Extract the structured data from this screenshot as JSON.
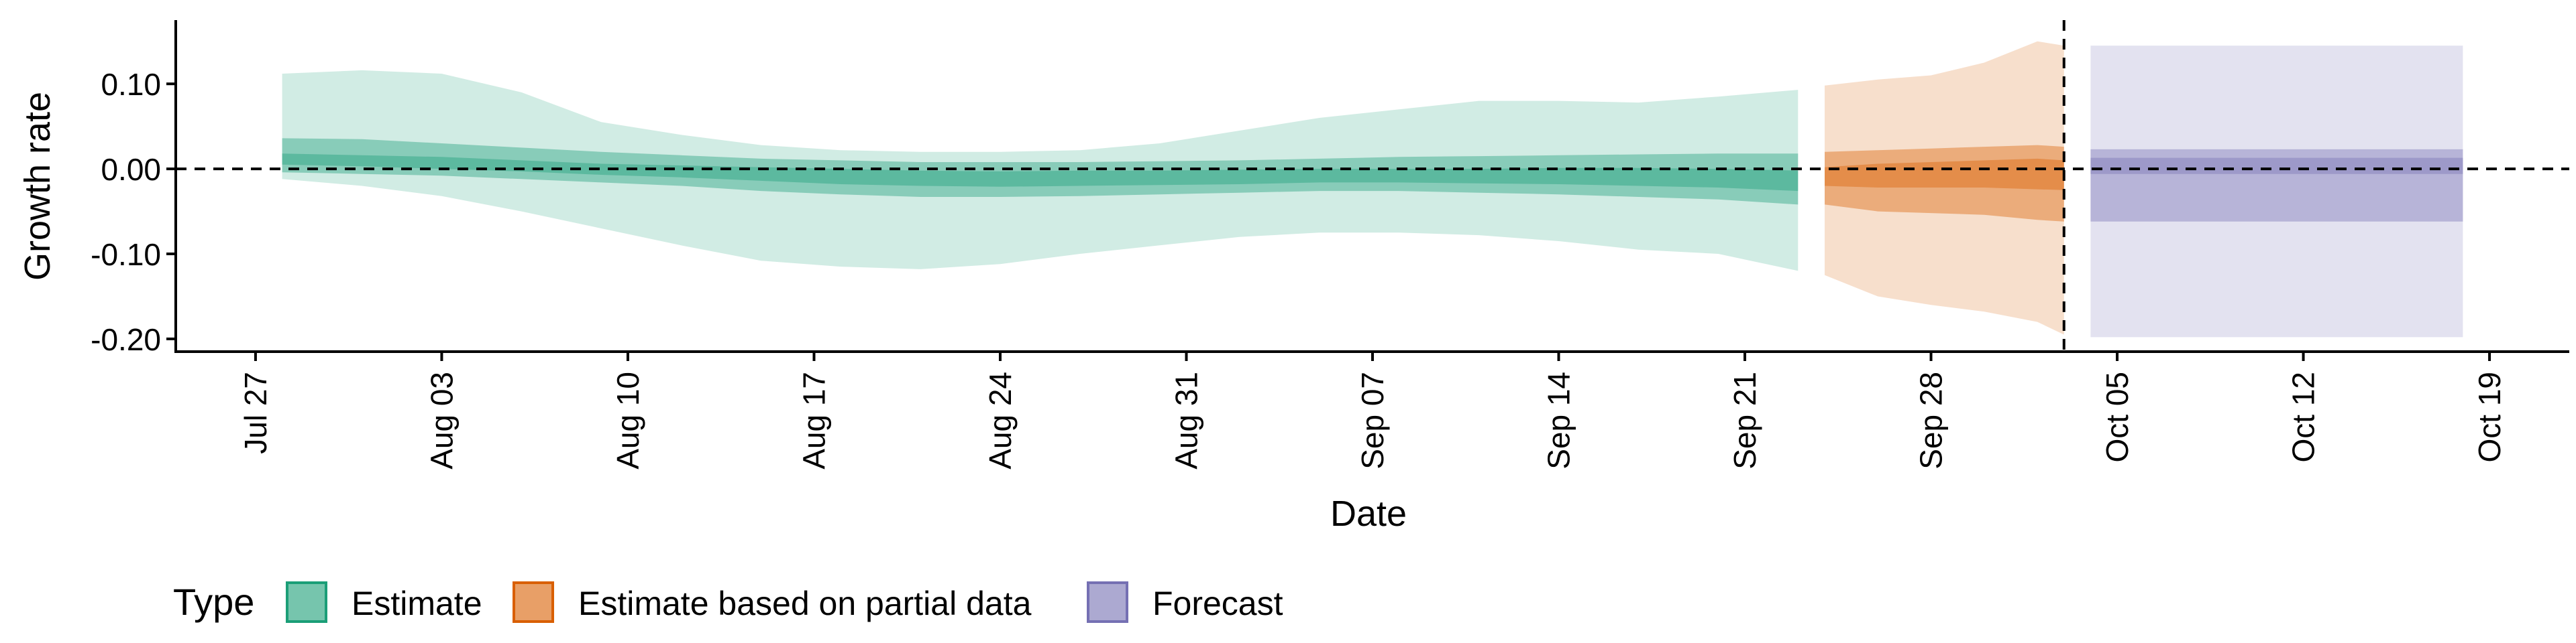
{
  "chart_data": {
    "type": "area",
    "xlabel": "Date",
    "ylabel": "Growth rate",
    "xlim": [
      "2020-07-24",
      "2020-10-22"
    ],
    "ylim": [
      -0.215,
      0.175
    ],
    "y_ticks": [
      0.1,
      0.0,
      -0.1,
      -0.2
    ],
    "y_tick_labels": [
      "0.10",
      "0.00",
      "-0.10",
      "-0.20"
    ],
    "x_ticks": [
      "2020-07-27",
      "2020-08-03",
      "2020-08-10",
      "2020-08-17",
      "2020-08-24",
      "2020-08-31",
      "2020-09-07",
      "2020-09-14",
      "2020-09-21",
      "2020-09-28",
      "2020-10-05",
      "2020-10-12",
      "2020-10-19"
    ],
    "x_tick_labels": [
      "Jul 27",
      "Aug 03",
      "Aug 10",
      "Aug 17",
      "Aug 24",
      "Aug 31",
      "Sep 07",
      "Sep 14",
      "Sep 21",
      "Sep 28",
      "Oct 05",
      "Oct 12",
      "Oct 19"
    ],
    "reference_lines": {
      "horizontal_y": 0,
      "vertical_x": "2020-10-03"
    },
    "grid": false,
    "legend": {
      "title": "Type",
      "position": "bottom-left"
    },
    "colors": {
      "Estimate": "#1b9e77",
      "Estimate based on partial data": "#d95f02",
      "Forecast": "#7570b3"
    },
    "series": [
      {
        "name": "Estimate",
        "x": [
          "2020-07-28",
          "2020-07-31",
          "2020-08-03",
          "2020-08-06",
          "2020-08-09",
          "2020-08-12",
          "2020-08-15",
          "2020-08-18",
          "2020-08-21",
          "2020-08-24",
          "2020-08-27",
          "2020-08-30",
          "2020-09-02",
          "2020-09-05",
          "2020-09-08",
          "2020-09-11",
          "2020-09-14",
          "2020-09-17",
          "2020-09-20",
          "2020-09-23"
        ],
        "upper90": [
          0.112,
          0.116,
          0.112,
          0.09,
          0.055,
          0.04,
          0.028,
          0.022,
          0.02,
          0.02,
          0.022,
          0.03,
          0.045,
          0.06,
          0.07,
          0.08,
          0.08,
          0.078,
          0.085,
          0.093
        ],
        "lower90": [
          -0.012,
          -0.02,
          -0.032,
          -0.05,
          -0.07,
          -0.09,
          -0.108,
          -0.115,
          -0.118,
          -0.112,
          -0.1,
          -0.09,
          -0.08,
          -0.075,
          -0.075,
          -0.078,
          -0.085,
          -0.095,
          -0.1,
          -0.12
        ],
        "upper50": [
          0.036,
          0.035,
          0.03,
          0.025,
          0.02,
          0.016,
          0.012,
          0.01,
          0.008,
          0.008,
          0.008,
          0.009,
          0.01,
          0.012,
          0.014,
          0.015,
          0.016,
          0.017,
          0.018,
          0.018
        ],
        "lower50": [
          -0.004,
          -0.006,
          -0.008,
          -0.012,
          -0.016,
          -0.02,
          -0.026,
          -0.03,
          -0.033,
          -0.033,
          -0.032,
          -0.03,
          -0.028,
          -0.026,
          -0.026,
          -0.028,
          -0.03,
          -0.033,
          -0.036,
          -0.042
        ],
        "upper20": [
          0.018,
          0.016,
          0.014,
          0.01,
          0.006,
          0.004,
          0.002,
          0.0,
          -0.002,
          -0.003,
          -0.002,
          -0.002,
          -0.001,
          0.0,
          0.0,
          0.0,
          0.001,
          0.001,
          0.0,
          -0.002
        ],
        "lower20": [
          0.005,
          0.003,
          0.0,
          -0.003,
          -0.007,
          -0.01,
          -0.014,
          -0.018,
          -0.02,
          -0.021,
          -0.02,
          -0.019,
          -0.018,
          -0.016,
          -0.016,
          -0.017,
          -0.018,
          -0.02,
          -0.022,
          -0.026
        ]
      },
      {
        "name": "Estimate based on partial data",
        "x": [
          "2020-09-24",
          "2020-09-26",
          "2020-09-28",
          "2020-09-30",
          "2020-10-02",
          "2020-10-03"
        ],
        "upper90": [
          0.098,
          0.105,
          0.11,
          0.125,
          0.15,
          0.145
        ],
        "lower90": [
          -0.125,
          -0.15,
          -0.16,
          -0.168,
          -0.18,
          -0.195
        ],
        "upper50": [
          0.02,
          0.022,
          0.024,
          0.026,
          0.028,
          0.026
        ],
        "lower50": [
          -0.042,
          -0.05,
          -0.052,
          -0.054,
          -0.06,
          -0.062
        ],
        "upper20": [
          0.002,
          0.006,
          0.008,
          0.01,
          0.012,
          0.01
        ],
        "lower20": [
          -0.02,
          -0.022,
          -0.022,
          -0.022,
          -0.024,
          -0.025
        ]
      },
      {
        "name": "Forecast",
        "x": [
          "2020-10-04",
          "2020-10-18"
        ],
        "upper90": [
          0.145,
          0.145
        ],
        "lower90": [
          -0.198,
          -0.198
        ],
        "upper50": [
          0.023,
          0.023
        ],
        "lower50": [
          -0.062,
          -0.062
        ],
        "upper20": [
          0.013,
          0.013
        ],
        "lower20": [
          -0.006,
          -0.006
        ]
      }
    ]
  }
}
